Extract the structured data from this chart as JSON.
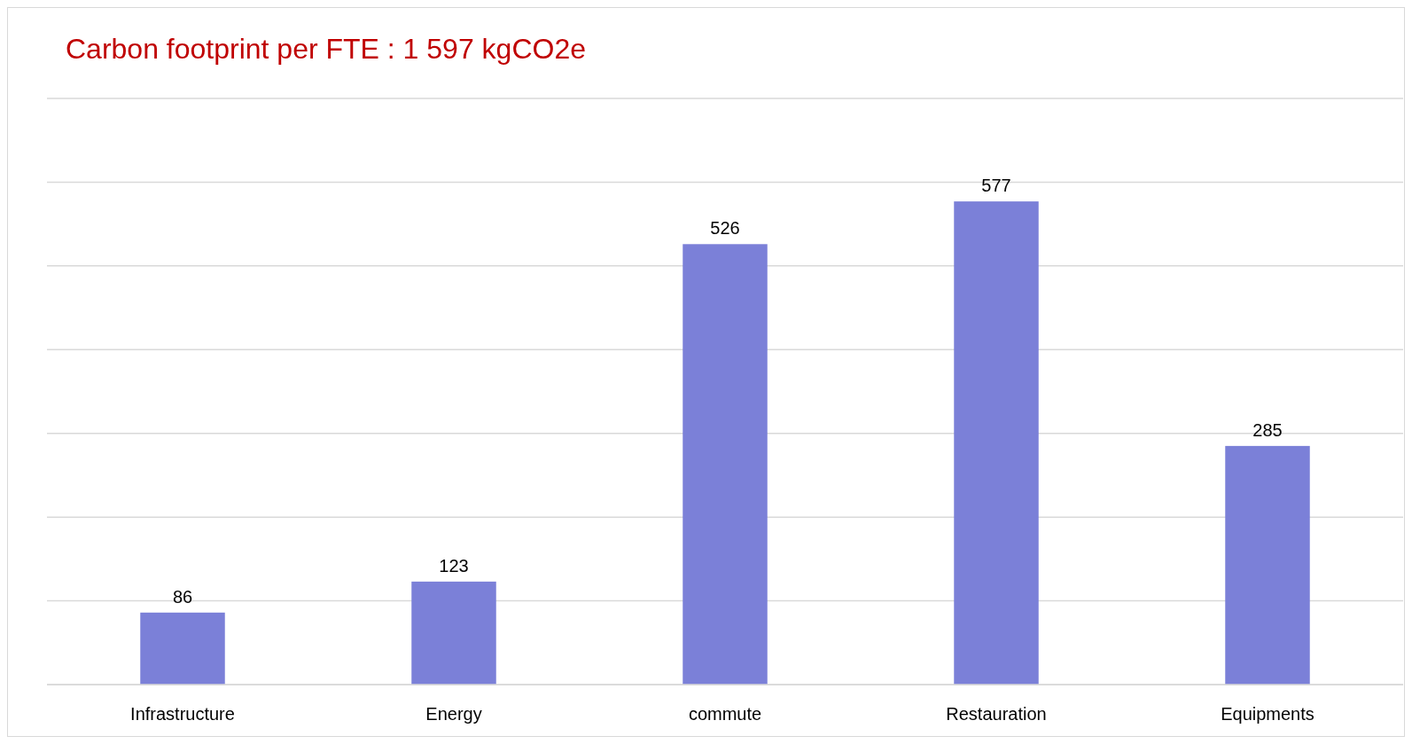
{
  "chart_data": {
    "type": "bar",
    "title": "Carbon footprint per FTE : 1 597 kgCO2e",
    "categories": [
      "Infrastructure",
      "Energy",
      "commute",
      "Restauration",
      "Equipments"
    ],
    "values": [
      86,
      123,
      526,
      577,
      285
    ],
    "color": "#7b80d8",
    "ylim": [
      0,
      700
    ],
    "yticks": [
      {
        "value": 0,
        "label": null
      },
      {
        "value": 100,
        "label": null
      },
      {
        "value": 200,
        "label": null
      },
      {
        "value": 300,
        "label": null
      },
      {
        "value": 400,
        "label": null
      },
      {
        "value": 500,
        "label": null
      },
      {
        "value": 600,
        "label": null
      },
      {
        "value": 700,
        "label": null
      }
    ],
    "grid": "y",
    "tick_labels": "x",
    "data_labels": true
  }
}
